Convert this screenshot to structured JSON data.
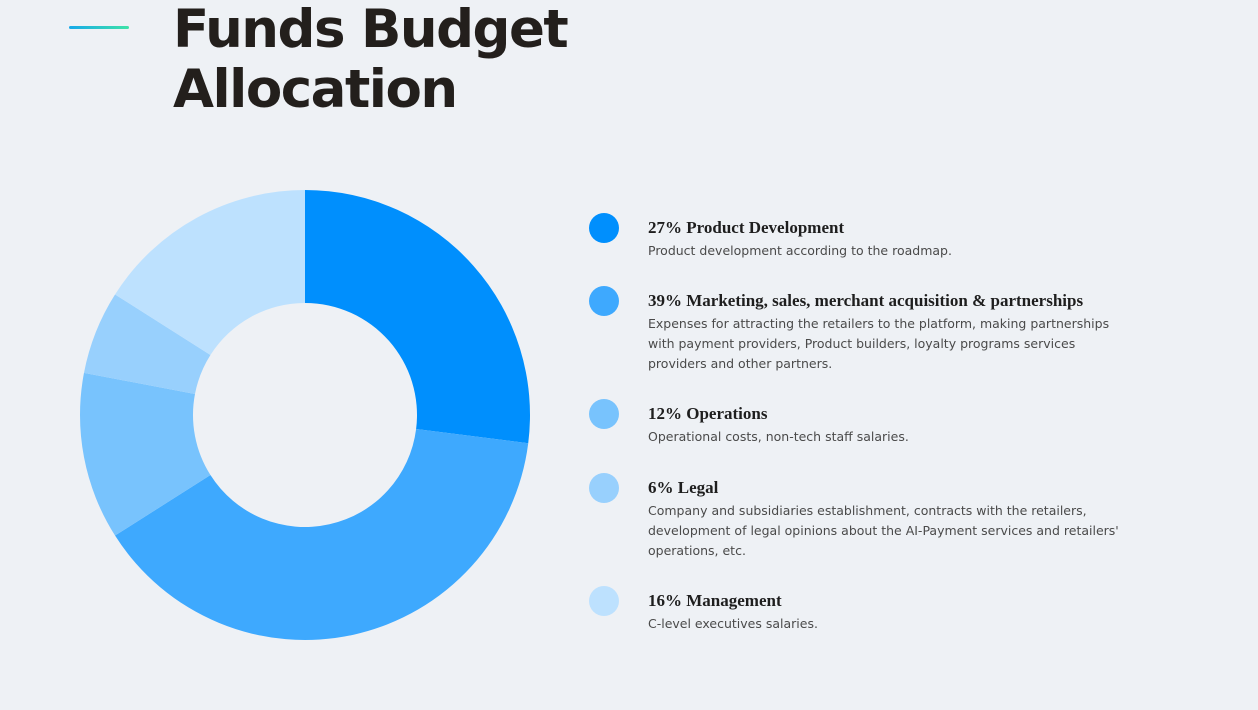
{
  "header": {
    "title_line1": "Funds Budget",
    "title_line2": "Allocation",
    "accent_colors": [
      "#17a9ea",
      "#3ee3a7"
    ]
  },
  "chart_data": {
    "type": "pie",
    "variant": "donut",
    "title": "Funds Budget Allocation",
    "series": [
      {
        "label": "27% Product Development",
        "value": 27,
        "color": "#008ffd",
        "description": "Product development according to the roadmap."
      },
      {
        "label": "39% Marketing, sales, merchant acquisition & partnerships",
        "value": 39,
        "color": "#3ea9fe",
        "description": "Expenses for attracting the retailers to the platform, making partnerships with payment providers, Product builders, loyalty programs services providers and other partners."
      },
      {
        "label": "12% Operations",
        "value": 12,
        "color": "#78c3fd",
        "description": "Operational costs, non-tech staff salaries."
      },
      {
        "label": "6% Legal",
        "value": 6,
        "color": "#98d0fd",
        "description": "Company and subsidiaries establishment, contracts with the retailers, development of legal opinions about the AI-Payment services and retailers' operations, etc."
      },
      {
        "label": "16% Management",
        "value": 16,
        "color": "#bde1fe",
        "description": "C-level executives salaries."
      }
    ]
  }
}
